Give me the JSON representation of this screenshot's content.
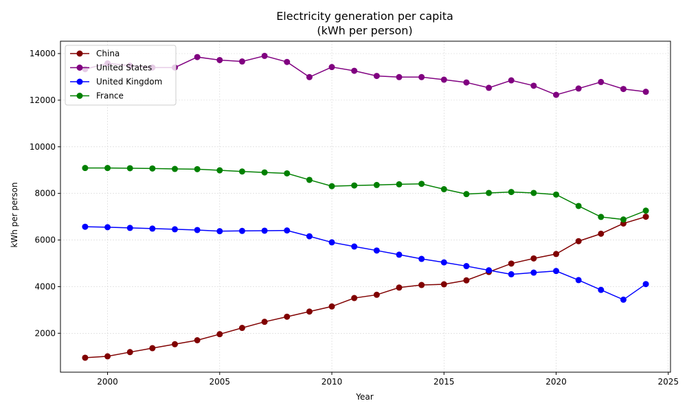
{
  "chart_data": {
    "type": "line",
    "title_lines": [
      "Electricity generation per capita",
      "(kWh per person)"
    ],
    "xlabel": "Year",
    "ylabel": "kWh per person",
    "xlim": [
      1997.9,
      2025.1
    ],
    "ylim": [
      330,
      14530
    ],
    "xticks": [
      2000,
      2005,
      2010,
      2015,
      2020,
      2025
    ],
    "yticks": [
      2000,
      4000,
      6000,
      8000,
      10000,
      12000,
      14000
    ],
    "grid": true,
    "legend_position": "top-left",
    "x": [
      1999,
      2000,
      2001,
      2002,
      2003,
      2004,
      2005,
      2006,
      2007,
      2008,
      2009,
      2010,
      2011,
      2012,
      2013,
      2014,
      2015,
      2016,
      2017,
      2018,
      2019,
      2020,
      2021,
      2022,
      2023,
      2024
    ],
    "series": [
      {
        "name": "China",
        "color": "#800000",
        "values": [
          950,
          1010,
          1190,
          1360,
          1530,
          1700,
          1960,
          2230,
          2490,
          2710,
          2930,
          3150,
          3510,
          3650,
          3960,
          4070,
          4100,
          4270,
          4630,
          4990,
          5210,
          5400,
          5950,
          6270,
          6710,
          7000
        ]
      },
      {
        "name": "United States",
        "color": "#800080",
        "values": [
          13330,
          13580,
          13480,
          13400,
          13400,
          13850,
          13720,
          13660,
          13900,
          13640,
          12990,
          13420,
          13260,
          13040,
          12990,
          12990,
          12880,
          12760,
          12530,
          12850,
          12620,
          12230,
          12500,
          12780,
          12480,
          12360
        ]
      },
      {
        "name": "United Kingdom",
        "color": "#0000ff",
        "values": [
          6570,
          6550,
          6520,
          6490,
          6460,
          6430,
          6380,
          6390,
          6400,
          6410,
          6160,
          5900,
          5720,
          5550,
          5370,
          5190,
          5040,
          4880,
          4700,
          4530,
          4600,
          4670,
          4280,
          3860,
          3440,
          4110
        ]
      },
      {
        "name": "France",
        "color": "#008000",
        "values": [
          9090,
          9090,
          9080,
          9070,
          9050,
          9040,
          8990,
          8940,
          8900,
          8860,
          8580,
          8310,
          8340,
          8360,
          8390,
          8410,
          8180,
          7970,
          8020,
          8060,
          8020,
          7950,
          7460,
          6990,
          6880,
          7260
        ]
      }
    ]
  }
}
